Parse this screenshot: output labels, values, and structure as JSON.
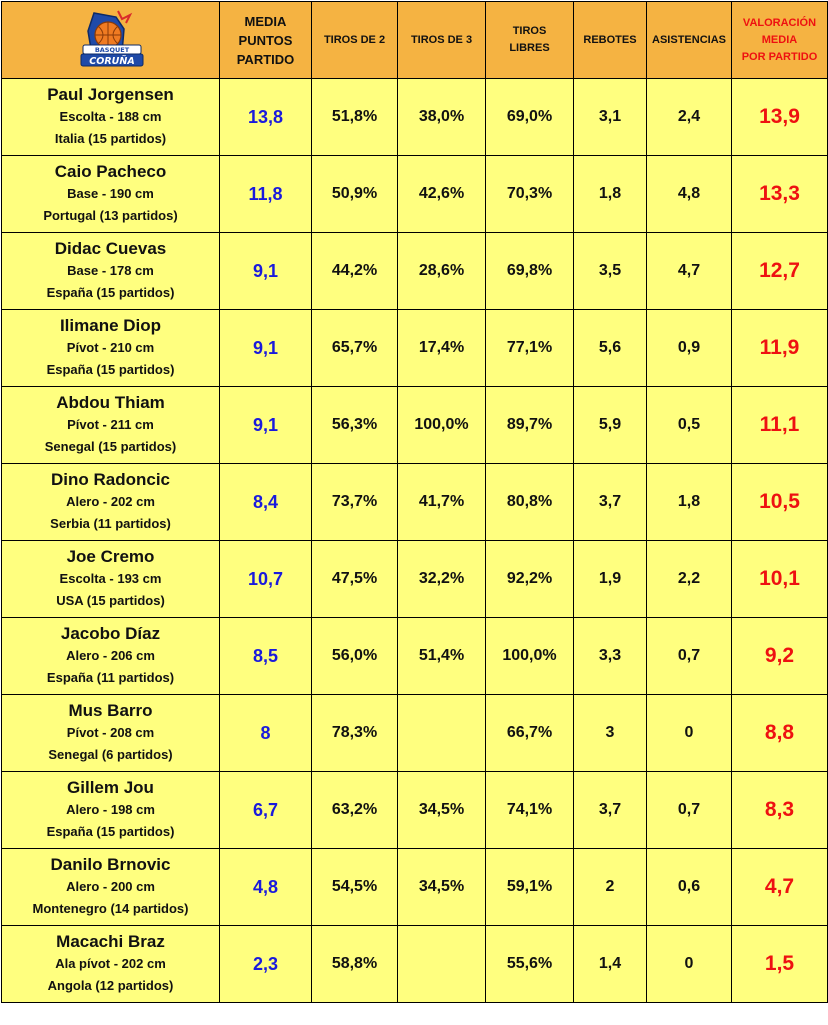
{
  "header": {
    "logo_text": [
      "BASQUET",
      "CORUÑA"
    ],
    "col_media": [
      "MEDIA",
      "PUNTOS",
      "PARTIDO"
    ],
    "col_t2": "TIROS DE 2",
    "col_t3": "TIROS DE 3",
    "col_tl": [
      "TIROS",
      "LIBRES"
    ],
    "col_reb": "REBOTES",
    "col_ast": "ASISTENCIAS",
    "col_val": [
      "VALORACIÓN",
      "MEDIA",
      "POR PARTIDO"
    ]
  },
  "players": [
    {
      "name": "Paul Jorgensen",
      "pos": "Escolta - 188 cm",
      "origin": "Italia (15 partidos)",
      "pts": "13,8",
      "t2": "51,8%",
      "t3": "38,0%",
      "tl": "69,0%",
      "reb": "3,1",
      "ast": "2,4",
      "val": "13,9"
    },
    {
      "name": "Caio Pacheco",
      "pos": "Base - 190 cm",
      "origin": "Portugal (13 partidos)",
      "pts": "11,8",
      "t2": "50,9%",
      "t3": "42,6%",
      "tl": "70,3%",
      "reb": "1,8",
      "ast": "4,8",
      "val": "13,3"
    },
    {
      "name": "Didac Cuevas",
      "pos": "Base - 178 cm",
      "origin": "España (15 partidos)",
      "pts": "9,1",
      "t2": "44,2%",
      "t3": "28,6%",
      "tl": "69,8%",
      "reb": "3,5",
      "ast": "4,7",
      "val": "12,7"
    },
    {
      "name": "Ilimane Diop",
      "pos": "Pívot - 210 cm",
      "origin": "España (15 partidos)",
      "pts": "9,1",
      "t2": "65,7%",
      "t3": "17,4%",
      "tl": "77,1%",
      "reb": "5,6",
      "ast": "0,9",
      "val": "11,9"
    },
    {
      "name": "Abdou Thiam",
      "pos": "Pívot - 211 cm",
      "origin": "Senegal (15 partidos)",
      "pts": "9,1",
      "t2": "56,3%",
      "t3": "100,0%",
      "tl": "89,7%",
      "reb": "5,9",
      "ast": "0,5",
      "val": "11,1"
    },
    {
      "name": "Dino Radoncic",
      "pos": "Alero - 202 cm",
      "origin": "Serbia (11 partidos)",
      "pts": "8,4",
      "t2": "73,7%",
      "t3": "41,7%",
      "tl": "80,8%",
      "reb": "3,7",
      "ast": "1,8",
      "val": "10,5"
    },
    {
      "name": "Joe Cremo",
      "pos": "Escolta - 193 cm",
      "origin": "USA (15 partidos)",
      "pts": "10,7",
      "t2": "47,5%",
      "t3": "32,2%",
      "tl": "92,2%",
      "reb": "1,9",
      "ast": "2,2",
      "val": "10,1"
    },
    {
      "name": "Jacobo Díaz",
      "pos": "Alero - 206 cm",
      "origin": "España (11 partidos)",
      "pts": "8,5",
      "t2": "56,0%",
      "t3": "51,4%",
      "tl": "100,0%",
      "reb": "3,3",
      "ast": "0,7",
      "val": "9,2"
    },
    {
      "name": "Mus Barro",
      "pos": "Pívot - 208 cm",
      "origin": "Senegal (6 partidos)",
      "pts": "8",
      "t2": "78,3%",
      "t3": "",
      "tl": "66,7%",
      "reb": "3",
      "ast": "0",
      "val": "8,8"
    },
    {
      "name": "Gillem Jou",
      "pos": "Alero - 198 cm",
      "origin": "España (15 partidos)",
      "pts": "6,7",
      "t2": "63,2%",
      "t3": "34,5%",
      "tl": "74,1%",
      "reb": "3,7",
      "ast": "0,7",
      "val": "8,3"
    },
    {
      "name": "Danilo Brnovic",
      "pos": "Alero - 200 cm",
      "origin": "Montenegro (14 partidos)",
      "pts": "4,8",
      "t2": "54,5%",
      "t3": "34,5%",
      "tl": "59,1%",
      "reb": "2",
      "ast": "0,6",
      "val": "4,7"
    },
    {
      "name": "Macachi Braz",
      "pos": "Ala pívot - 202 cm",
      "origin": "Angola (12 partidos)",
      "pts": "2,3",
      "t2": "58,8%",
      "t3": "",
      "tl": "55,6%",
      "reb": "1,4",
      "ast": "0",
      "val": "1,5"
    }
  ],
  "colors": {
    "header_bg": "#f5b342",
    "row_bg": "#ffff7f",
    "points": "#1a1adc",
    "valuation": "#ee1111"
  }
}
